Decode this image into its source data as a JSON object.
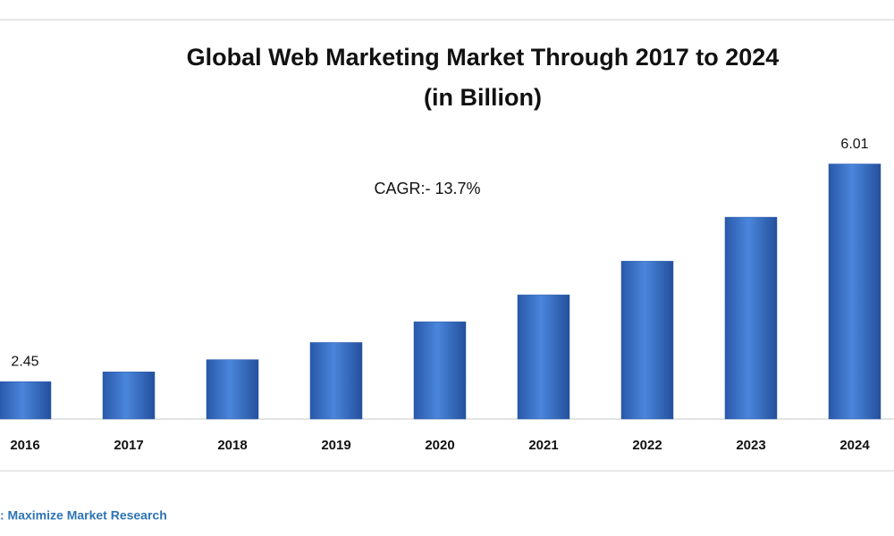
{
  "chart_data": {
    "type": "bar",
    "title": "Global Web Marketing Market Through 2017 to 2024",
    "subtitle": "(in Billion)",
    "annotation": "CAGR:- 13.7%",
    "source": ": Maximize Market Research",
    "categories": [
      "2016",
      "2017",
      "2018",
      "2019",
      "2020",
      "2021",
      "2022",
      "2023",
      "2024"
    ],
    "values": [
      2.45,
      2.61,
      2.81,
      3.09,
      3.43,
      3.87,
      4.42,
      5.14,
      6.01
    ],
    "value_labels": [
      "2.45",
      null,
      null,
      null,
      null,
      null,
      null,
      null,
      "6.01"
    ],
    "color": "#3a6fc4",
    "ylim": [
      1.84,
      6.5
    ]
  }
}
